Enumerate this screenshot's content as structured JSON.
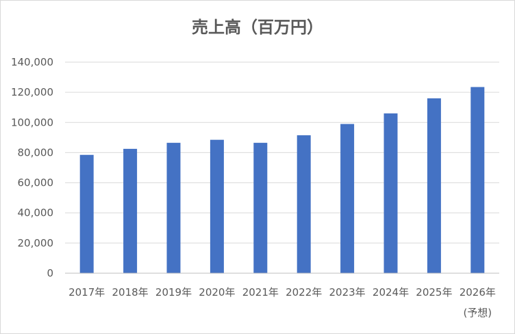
{
  "chart_data": {
    "type": "bar",
    "title": "売上高（百万円）",
    "categories": [
      "2017年",
      "2018年",
      "2019年",
      "2020年",
      "2021年",
      "2022年",
      "2023年",
      "2024年",
      "2025年",
      "2026年"
    ],
    "category_notes": [
      "",
      "",
      "",
      "",
      "",
      "",
      "",
      "",
      "",
      "(予想)"
    ],
    "values": [
      78500,
      82500,
      86500,
      88500,
      86500,
      91500,
      99000,
      106000,
      116000,
      123500
    ],
    "ylim": [
      0,
      140000
    ],
    "yticks": [
      "0",
      "20,000",
      "40,000",
      "60,000",
      "80,000",
      "100,000",
      "120,000",
      "140,000"
    ],
    "ytick_values": [
      0,
      20000,
      40000,
      60000,
      80000,
      100000,
      120000,
      140000
    ],
    "grid": true,
    "legend": "none",
    "bar_color": "#4472c4"
  }
}
